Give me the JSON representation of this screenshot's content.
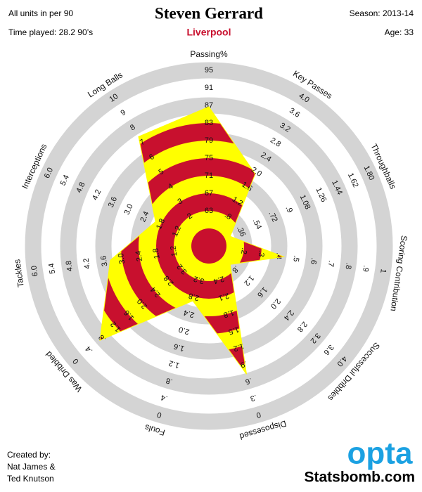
{
  "header": {
    "note": "All units in per 90",
    "title": "Steven Gerrard",
    "season": "Season: 2013-14",
    "time_played": "Time played: 28.2 90’s",
    "team": "Liverpool",
    "age": "Age: 33"
  },
  "footer": {
    "credit": [
      "Created by:",
      "Nat James &",
      "Ted Knutson"
    ],
    "logo": "opta",
    "site": "Statsbomb.com"
  },
  "chart_data": {
    "type": "radar",
    "categories": [
      "Passing%",
      "Key Passes",
      "Throughballs",
      "Scoring Contribution",
      "Successful Dribbles",
      "Disposessed",
      "Fouls",
      "Was Dribbled",
      "Tackles",
      "Interceptions",
      "Long Balls"
    ],
    "values": [
      86.7,
      1.95,
      0.24,
      0.43,
      0.64,
      0.72,
      2.7,
      0.72,
      3.4,
      2.0,
      7.4
    ],
    "colors": [
      "#c8102e",
      "#ffff00"
    ],
    "ring_color": "#d4d4d4",
    "axes": [
      {
        "lim": [
          59,
          95
        ],
        "ticks": [
          63,
          67,
          71,
          75,
          79,
          83,
          87,
          91,
          95
        ]
      },
      {
        "lim": [
          0.4,
          4.0
        ],
        "ticks": [
          {
            "value": 0.8,
            "label": ".8"
          },
          1.2,
          1.6,
          {
            "value": 2,
            "label": "2.0"
          },
          2.4,
          2.8,
          3.2,
          3.6,
          {
            "value": 4,
            "label": "4.0"
          }
        ]
      },
      {
        "lim": [
          0.18,
          1.8
        ],
        "ticks": [
          {
            "value": 0.36,
            "label": ".36"
          },
          {
            "value": 0.54,
            "label": ".54"
          },
          {
            "value": 0.72,
            "label": ".72"
          },
          {
            "value": 0.9,
            "label": ".9"
          },
          1.08,
          1.26,
          1.44,
          1.62,
          {
            "value": 1.8,
            "label": "1.80"
          }
        ]
      },
      {
        "lim": [
          0.1,
          1
        ],
        "ticks": [
          {
            "value": 0.2,
            "label": ".2"
          },
          {
            "value": 0.3,
            "label": ".3"
          },
          {
            "value": 0.4,
            "label": ".4"
          },
          {
            "value": 0.5,
            "label": ".5"
          },
          {
            "value": 0.6,
            "label": ".6"
          },
          {
            "value": 0.7,
            "label": ".7"
          },
          {
            "value": 0.8,
            "label": ".8"
          },
          {
            "value": 0.9,
            "label": ".9"
          },
          1
        ]
      },
      {
        "lim": [
          0.4,
          4.0
        ],
        "ticks": [
          {
            "value": 0.8,
            "label": ".8"
          },
          1.2,
          1.6,
          {
            "value": 2,
            "label": "2.0"
          },
          2.4,
          2.8,
          3.2,
          3.6,
          {
            "value": 4,
            "label": "4.0"
          }
        ]
      },
      {
        "lim": [
          2.7,
          0
        ],
        "ticks": [
          2.4,
          2.1,
          1.8,
          1.5,
          1.2,
          {
            "value": 0.9,
            "label": ".9"
          },
          {
            "value": 0.6,
            "label": ".6"
          },
          {
            "value": 0.3,
            "label": ".3"
          },
          0
        ]
      },
      {
        "lim": [
          3.6,
          0
        ],
        "ticks": [
          3.2,
          2.8,
          2.4,
          {
            "value": 2,
            "label": "2.0"
          },
          1.6,
          1.2,
          {
            "value": 0.8,
            "label": ".8"
          },
          {
            "value": 0.4,
            "label": ".4"
          },
          0
        ]
      },
      {
        "lim": [
          3.6,
          0
        ],
        "ticks": [
          3.2,
          2.8,
          2.4,
          {
            "value": 2,
            "label": "2.0"
          },
          1.6,
          1.2,
          {
            "value": 0.8,
            "label": ".8"
          },
          {
            "value": 0.4,
            "label": ".4"
          },
          0
        ]
      },
      {
        "lim": [
          0.6,
          6
        ],
        "ticks": [
          1.2,
          1.8,
          2.4,
          {
            "value": 3,
            "label": "3.0"
          },
          3.6,
          4.2,
          4.8,
          5.4,
          {
            "value": 6,
            "label": "6.0"
          }
        ]
      },
      {
        "lim": [
          0.6,
          6
        ],
        "ticks": [
          1.2,
          1.8,
          2.4,
          {
            "value": 3,
            "label": "3.0"
          },
          3.6,
          4.2,
          4.8,
          5.4,
          {
            "value": 6,
            "label": "6.0"
          }
        ]
      },
      {
        "lim": [
          1,
          10
        ],
        "ticks": [
          2,
          3,
          4,
          5,
          6,
          7,
          8,
          9,
          10
        ]
      }
    ]
  }
}
